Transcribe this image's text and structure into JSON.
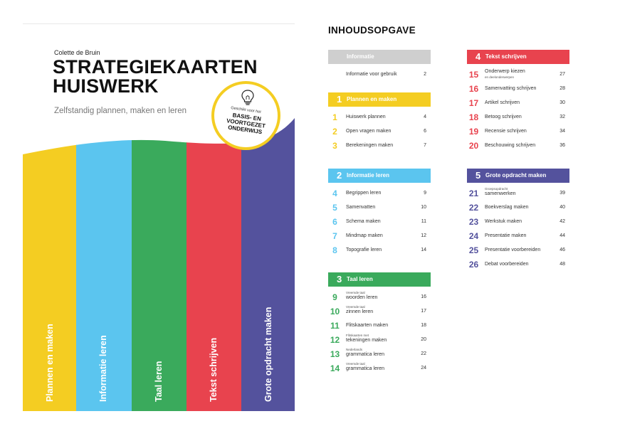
{
  "cover": {
    "author": "Colette de Bruin",
    "title_line1": "STRATEGIEKAARTEN",
    "title_line2": "HUISWERK",
    "subtitle": "Zelfstandig plannen, maken en leren",
    "badge_small": "Geschikt voor het",
    "badge_line1": "BASIS- EN",
    "badge_line2": "VOORTGEZET",
    "badge_line3": "ONDERWIJS",
    "badge_icon": "lightbulb-icon",
    "stripes": [
      {
        "label": "Plannen en maken",
        "color": "#f4cd22"
      },
      {
        "label": "Informatie leren",
        "color": "#5bc5ef"
      },
      {
        "label": "Taal leren",
        "color": "#3aaa5c"
      },
      {
        "label": "Tekst schrijven",
        "color": "#e8434e"
      },
      {
        "label": "Grote opdracht maken",
        "color": "#54529d"
      }
    ]
  },
  "toc": {
    "title": "INHOUDSOPGAVE",
    "sections": [
      {
        "num": "",
        "label": "Informatie",
        "color": "#cfcfcf",
        "entries": [
          {
            "n": "",
            "text": "Informatie voor gebruik",
            "small": "",
            "page": "2"
          }
        ]
      },
      {
        "num": "1",
        "label": "Plannen en maken",
        "color": "#f4cd22",
        "entries": [
          {
            "n": "1",
            "text": "Huiswerk plannen",
            "small": "",
            "page": "4"
          },
          {
            "n": "2",
            "text": "Open vragen maken",
            "small": "",
            "page": "6"
          },
          {
            "n": "3",
            "text": "Berekeningen maken",
            "small": "",
            "page": "7"
          }
        ]
      },
      {
        "num": "2",
        "label": "Informatie leren",
        "color": "#5bc5ef",
        "entries": [
          {
            "n": "4",
            "text": "Begrippen leren",
            "small": "",
            "page": "9"
          },
          {
            "n": "5",
            "text": "Samenvatten",
            "small": "",
            "page": "10"
          },
          {
            "n": "6",
            "text": "Schema maken",
            "small": "",
            "page": "11"
          },
          {
            "n": "7",
            "text": "Mindmap maken",
            "small": "",
            "page": "12"
          },
          {
            "n": "8",
            "text": "Topografie leren",
            "small": "",
            "page": "14"
          }
        ]
      },
      {
        "num": "3",
        "label": "Taal leren",
        "color": "#3aaa5c",
        "entries": [
          {
            "n": "9",
            "text": "woorden leren",
            "small": "Vreemde taal",
            "page": "16"
          },
          {
            "n": "10",
            "text": "zinnen leren",
            "small": "Vreemde taal",
            "page": "17"
          },
          {
            "n": "11",
            "text": "Flitskaarten maken",
            "small": "",
            "page": "18"
          },
          {
            "n": "12",
            "text": "tekeningen maken",
            "small": "Flitskaarten met",
            "page": "20"
          },
          {
            "n": "13",
            "text": "grammatica leren",
            "small": "Nederlands",
            "page": "22"
          },
          {
            "n": "14",
            "text": "grammatica leren",
            "small": "Vreemde taal",
            "page": "24"
          }
        ]
      },
      {
        "num": "4",
        "label": "Tekst schrijven",
        "color": "#e8434e",
        "entries": [
          {
            "n": "15",
            "text": "Onderwerp kiezen",
            "small": "en deelonderwerpen",
            "small_below": true,
            "page": "27"
          },
          {
            "n": "16",
            "text": "Samenvatting schrijven",
            "small": "",
            "page": "28"
          },
          {
            "n": "17",
            "text": "Artikel schrijven",
            "small": "",
            "page": "30"
          },
          {
            "n": "18",
            "text": "Betoog schrijven",
            "small": "",
            "page": "32"
          },
          {
            "n": "19",
            "text": "Recensie schrijven",
            "small": "",
            "page": "34"
          },
          {
            "n": "20",
            "text": "Beschouwing schrijven",
            "small": "",
            "page": "36"
          }
        ]
      },
      {
        "num": "5",
        "label": "Grote opdracht maken",
        "color": "#54529d",
        "entries": [
          {
            "n": "21",
            "text": "samenwerken",
            "small": "Groepsopdracht",
            "page": "39"
          },
          {
            "n": "22",
            "text": "Boekverslag maken",
            "small": "",
            "page": "40"
          },
          {
            "n": "23",
            "text": "Werkstuk maken",
            "small": "",
            "page": "42"
          },
          {
            "n": "24",
            "text": "Presentatie maken",
            "small": "",
            "page": "44"
          },
          {
            "n": "25",
            "text": "Presentatie voorbereiden",
            "small": "",
            "page": "46"
          },
          {
            "n": "26",
            "text": "Debat voorbereiden",
            "small": "",
            "page": "48"
          }
        ]
      }
    ]
  }
}
